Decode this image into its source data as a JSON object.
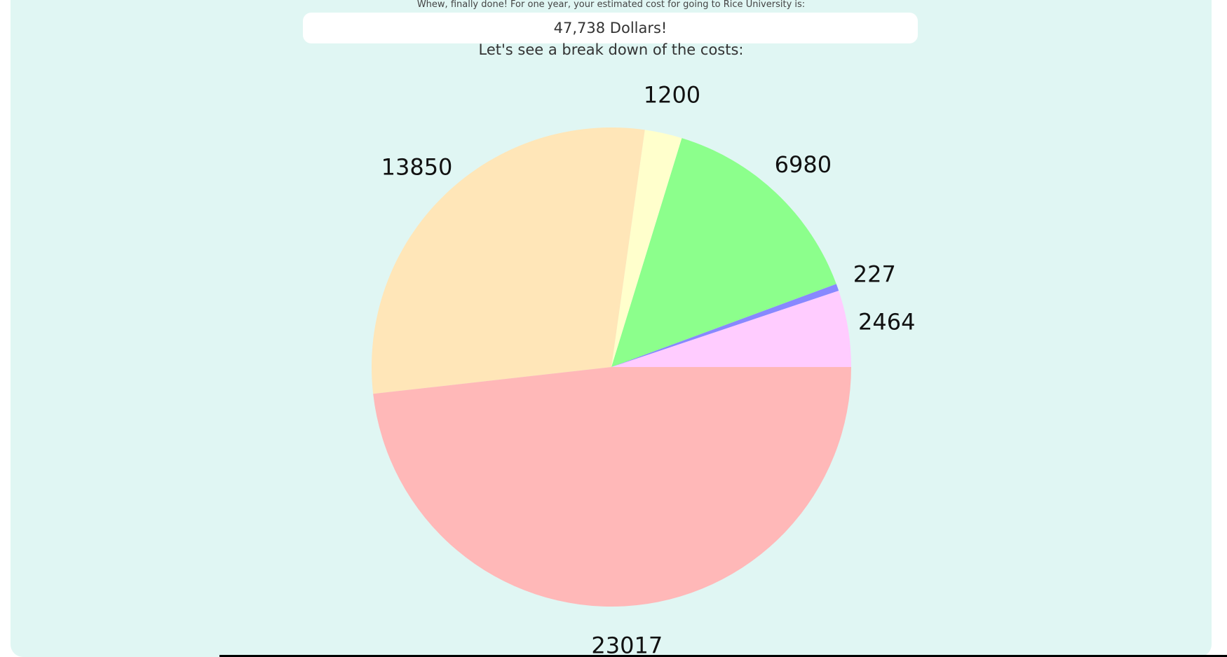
{
  "page": {
    "intro": "Whew, finally done! For one year, your estimated cost for going to Rice University is:",
    "total": "47,738 Dollars!",
    "breakdown_heading": "Let's see a break down of the costs:"
  },
  "chart_data": {
    "type": "pie",
    "values": [
      2464,
      227,
      6980,
      1200,
      13850,
      23017
    ],
    "labels": [
      "2464",
      "227",
      "6980",
      "1200",
      "13850",
      "23017"
    ],
    "colors": [
      "#ffccff",
      "#8888ff",
      "#8cff8c",
      "#ffffcc",
      "#ffe6b8",
      "#ffb8b8"
    ]
  }
}
